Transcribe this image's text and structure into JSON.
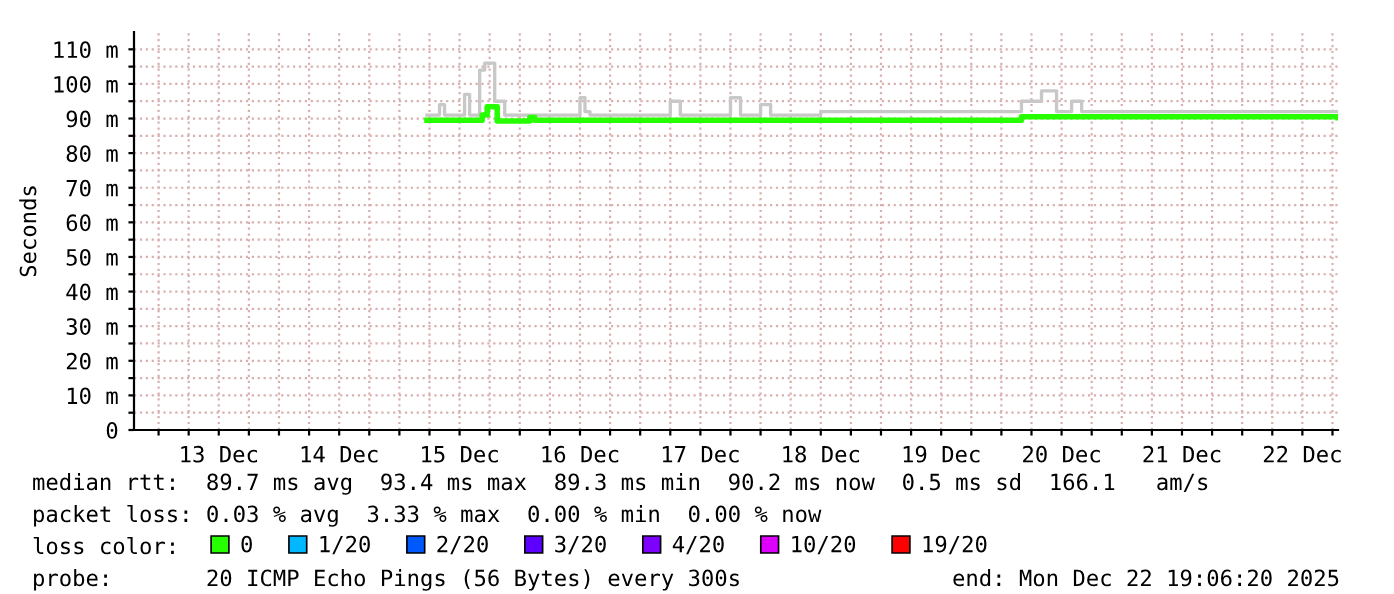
{
  "chart_data": {
    "type": "step",
    "ylabel": "Seconds",
    "legend_title": "loss color:",
    "legend": "bottom",
    "grid": true,
    "xlim": [
      "2025-12-12T19:06",
      "2025-12-22T19:06"
    ],
    "ylim": [
      0,
      115
    ],
    "xticks": [
      {
        "value": "2025-12-13T00:00",
        "label": null
      },
      {
        "value": "2025-12-13T06:00",
        "label": null
      },
      {
        "value": "2025-12-13T12:00",
        "label": "13 Dec"
      },
      {
        "value": "2025-12-13T18:00",
        "label": null
      },
      {
        "value": "2025-12-14T00:00",
        "label": null
      },
      {
        "value": "2025-12-14T06:00",
        "label": null
      },
      {
        "value": "2025-12-14T12:00",
        "label": "14 Dec"
      },
      {
        "value": "2025-12-14T18:00",
        "label": null
      },
      {
        "value": "2025-12-15T00:00",
        "label": null
      },
      {
        "value": "2025-12-15T06:00",
        "label": null
      },
      {
        "value": "2025-12-15T12:00",
        "label": "15 Dec"
      },
      {
        "value": "2025-12-15T18:00",
        "label": null
      },
      {
        "value": "2025-12-16T00:00",
        "label": null
      },
      {
        "value": "2025-12-16T06:00",
        "label": null
      },
      {
        "value": "2025-12-16T12:00",
        "label": "16 Dec"
      },
      {
        "value": "2025-12-16T18:00",
        "label": null
      },
      {
        "value": "2025-12-17T00:00",
        "label": null
      },
      {
        "value": "2025-12-17T06:00",
        "label": null
      },
      {
        "value": "2025-12-17T12:00",
        "label": "17 Dec"
      },
      {
        "value": "2025-12-17T18:00",
        "label": null
      },
      {
        "value": "2025-12-18T00:00",
        "label": null
      },
      {
        "value": "2025-12-18T06:00",
        "label": null
      },
      {
        "value": "2025-12-18T12:00",
        "label": "18 Dec"
      },
      {
        "value": "2025-12-18T18:00",
        "label": null
      },
      {
        "value": "2025-12-19T00:00",
        "label": null
      },
      {
        "value": "2025-12-19T06:00",
        "label": null
      },
      {
        "value": "2025-12-19T12:00",
        "label": "19 Dec"
      },
      {
        "value": "2025-12-19T18:00",
        "label": null
      },
      {
        "value": "2025-12-20T00:00",
        "label": null
      },
      {
        "value": "2025-12-20T06:00",
        "label": null
      },
      {
        "value": "2025-12-20T12:00",
        "label": "20 Dec"
      },
      {
        "value": "2025-12-20T18:00",
        "label": null
      },
      {
        "value": "2025-12-21T00:00",
        "label": null
      },
      {
        "value": "2025-12-21T06:00",
        "label": null
      },
      {
        "value": "2025-12-21T12:00",
        "label": "21 Dec"
      },
      {
        "value": "2025-12-21T18:00",
        "label": null
      },
      {
        "value": "2025-12-22T00:00",
        "label": null
      },
      {
        "value": "2025-12-22T06:00",
        "label": null
      },
      {
        "value": "2025-12-22T12:00",
        "label": "22 Dec"
      },
      {
        "value": "2025-12-22T18:00",
        "label": null
      }
    ],
    "yticks": [
      0,
      {
        "value": 5,
        "label": null
      },
      {
        "value": 10,
        "label": "10 m"
      },
      {
        "value": 15,
        "label": null
      },
      {
        "value": 20,
        "label": "20 m"
      },
      {
        "value": 25,
        "label": null
      },
      {
        "value": 30,
        "label": "30 m"
      },
      {
        "value": 35,
        "label": null
      },
      {
        "value": 40,
        "label": "40 m"
      },
      {
        "value": 45,
        "label": null
      },
      {
        "value": 50,
        "label": "50 m"
      },
      {
        "value": 55,
        "label": null
      },
      {
        "value": 60,
        "label": "60 m"
      },
      {
        "value": 65,
        "label": null
      },
      {
        "value": 70,
        "label": "70 m"
      },
      {
        "value": 75,
        "label": null
      },
      {
        "value": 80,
        "label": "80 m"
      },
      {
        "value": 85,
        "label": null
      },
      {
        "value": 90,
        "label": "90 m"
      },
      {
        "value": 95,
        "label": null
      },
      {
        "value": 100,
        "label": "100 m"
      },
      {
        "value": 105,
        "label": null
      },
      {
        "value": 110,
        "label": "110 m"
      }
    ],
    "series": [
      {
        "color": "#c8c8c8",
        "x": [
          "2025-12-15T05:30",
          "2025-12-15T08:00",
          "2025-12-15T09:00",
          "2025-12-15T13:00",
          "2025-12-15T14:00",
          "2025-12-15T16:00",
          "2025-12-15T17:00",
          "2025-12-15T19:00",
          "2025-12-15T21:00",
          "2025-12-16T12:00",
          "2025-12-16T13:00",
          "2025-12-16T14:00",
          "2025-12-17T06:00",
          "2025-12-17T08:00",
          "2025-12-17T18:00",
          "2025-12-17T20:00",
          "2025-12-18T00:00",
          "2025-12-18T02:00",
          "2025-12-18T12:00",
          "2025-12-20T04:00",
          "2025-12-20T08:00",
          "2025-12-20T11:00",
          "2025-12-20T14:00",
          "2025-12-20T16:00",
          "2025-12-22T19:06"
        ],
        "values": [
          91,
          94,
          91,
          97,
          91,
          104,
          106,
          95,
          91,
          96,
          92,
          91,
          95,
          91,
          96,
          91,
          94,
          91,
          92,
          95,
          98,
          92,
          95,
          92,
          92
        ]
      },
      {
        "name": "0",
        "color": "#26ff00",
        "x": [
          "2025-12-15T05:30",
          "2025-12-15T16:30",
          "2025-12-15T17:30",
          "2025-12-15T19:30",
          "2025-12-16T02:00",
          "2025-12-16T03:00",
          "2025-12-20T04:00",
          "2025-12-22T19:06"
        ],
        "values": [
          89.5,
          91,
          93.4,
          89.3,
          90.3,
          89.5,
          90.5,
          90.2
        ]
      },
      {
        "name": "1/20",
        "color": "#00b8ff"
      },
      {
        "name": "2/20",
        "color": "#0059ff"
      },
      {
        "name": "3/20",
        "color": "#5e00ff"
      },
      {
        "name": "4/20",
        "color": "#7e00ff"
      },
      {
        "name": "10/20",
        "color": "#dd00ff"
      },
      {
        "name": "19/20",
        "color": "#ff0000"
      }
    ],
    "annotations": [
      "median rtt:  89.7 ms avg  93.4 ms max  89.3 ms min  90.2 ms now  0.5 ms sd  166.1   am/s",
      "packet loss: 0.03 % avg  3.33 % max  0.00 % min  0.00 % now",
      "probe:       20 ICMP Echo Pings (56 Bytes) every 300s",
      "end: Mon Dec 22 19:06:20 2025"
    ]
  }
}
